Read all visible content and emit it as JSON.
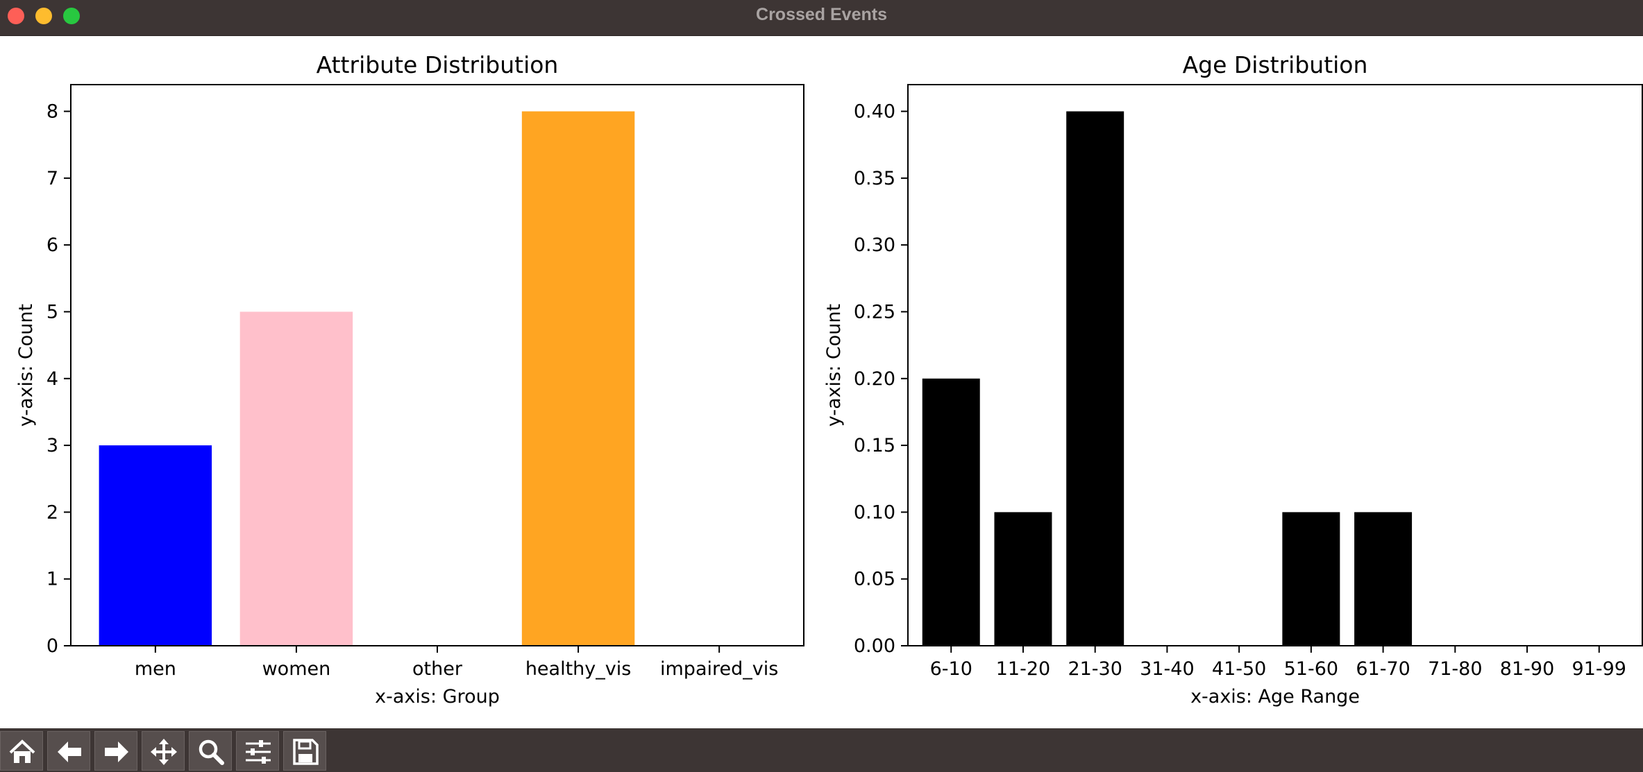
{
  "window": {
    "title": "Crossed Events"
  },
  "toolbar": {
    "tools": [
      {
        "icon": "home-icon"
      },
      {
        "icon": "back-arrow-icon"
      },
      {
        "icon": "forward-arrow-icon"
      },
      {
        "icon": "pan-move-icon"
      },
      {
        "icon": "zoom-magnifier-icon"
      },
      {
        "icon": "configure-subplots-icon"
      },
      {
        "icon": "save-floppy-icon"
      }
    ]
  },
  "chart_data": [
    {
      "type": "bar",
      "title": "Attribute Distribution",
      "xlabel": "x-axis: Group",
      "ylabel": "y-axis: Count",
      "categories": [
        "men",
        "women",
        "other",
        "healthy_vis",
        "impaired_vis"
      ],
      "values": [
        3,
        5,
        0,
        8,
        0
      ],
      "colors": [
        "#0000ff",
        "#ffc0cb",
        "#000000",
        "#ffa522",
        "#000000"
      ],
      "ylim": [
        0,
        8.4
      ],
      "yticks": [
        0,
        1,
        2,
        3,
        4,
        5,
        6,
        7,
        8
      ],
      "ytick_labels": [
        "0",
        "1",
        "2",
        "3",
        "4",
        "5",
        "6",
        "7",
        "8"
      ],
      "grid": false
    },
    {
      "type": "bar",
      "title": "Age Distribution",
      "xlabel": "x-axis: Age Range",
      "ylabel": "y-axis: Count",
      "categories": [
        "6-10",
        "11-20",
        "21-30",
        "31-40",
        "41-50",
        "51-60",
        "61-70",
        "71-80",
        "81-90",
        "91-99"
      ],
      "values": [
        0.2,
        0.1,
        0.4,
        0,
        0,
        0.1,
        0.1,
        0,
        0,
        0
      ],
      "colors": [
        "#000000"
      ],
      "ylim": [
        0,
        0.42
      ],
      "yticks": [
        0,
        0.05,
        0.1,
        0.15,
        0.2,
        0.25,
        0.3,
        0.35,
        0.4
      ],
      "ytick_labels": [
        "0.00",
        "0.05",
        "0.10",
        "0.15",
        "0.20",
        "0.25",
        "0.30",
        "0.35",
        "0.40"
      ],
      "grid": false
    }
  ]
}
